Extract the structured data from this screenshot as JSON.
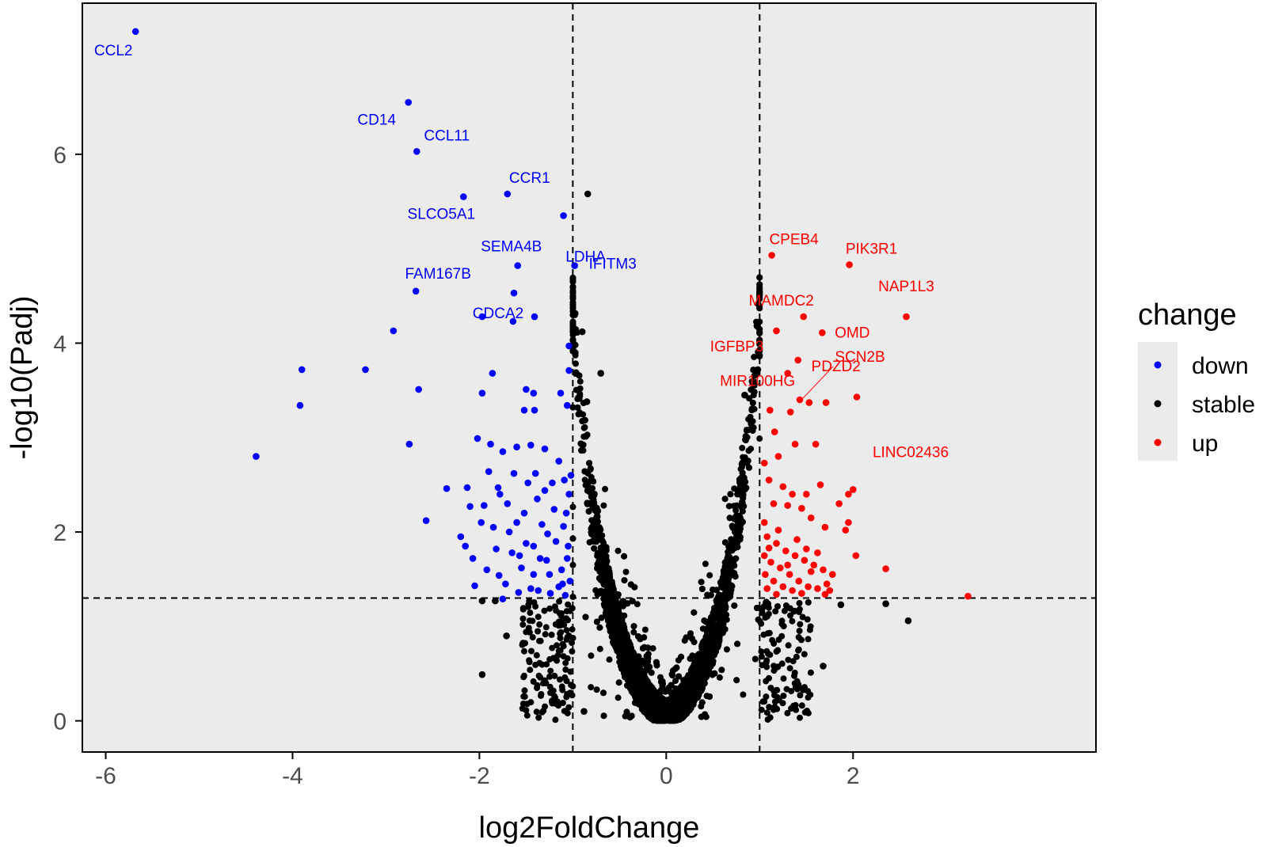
{
  "chart_data": {
    "type": "scatter",
    "xlabel": "log2FoldChange",
    "ylabel": "-log10(Padj)",
    "xlim": [
      -6.25,
      4.6
    ],
    "ylim": [
      -0.33,
      7.6
    ],
    "x_ticks": [
      -6,
      -4,
      -2,
      0,
      2
    ],
    "y_ticks": [
      0,
      2,
      4,
      6
    ],
    "x_tick_labels": [
      "-6",
      "-4",
      "-2",
      "0",
      "2"
    ],
    "y_tick_labels": [
      "0",
      "2",
      "4",
      "6"
    ],
    "grid": false,
    "background": "#ebebeb",
    "thresholds": {
      "fold_change": [
        -1,
        1
      ],
      "padj_line": 1.3
    },
    "legend": {
      "title": "change",
      "position": "right",
      "entries": [
        {
          "name": "down",
          "color": "#0000ff"
        },
        {
          "name": "stable",
          "color": "#000000"
        },
        {
          "name": "up",
          "color": "#ff0000"
        }
      ]
    },
    "stable_cloud": {
      "color": "#000000",
      "count": 5200,
      "description_shape": "v-shaped"
    },
    "series": [
      {
        "name": "down",
        "color": "#0000ff",
        "points": [
          [
            -5.68,
            7.3
          ],
          [
            -2.76,
            6.55
          ],
          [
            -2.67,
            6.03
          ],
          [
            -2.17,
            5.55
          ],
          [
            -1.7,
            5.58
          ],
          [
            -1.1,
            5.35
          ],
          [
            -1.59,
            4.82
          ],
          [
            -0.98,
            4.82
          ],
          [
            -2.68,
            4.55
          ],
          [
            -1.63,
            4.53
          ],
          [
            -1.41,
            4.28
          ],
          [
            -1.97,
            4.28
          ],
          [
            -1.64,
            4.23
          ],
          [
            -2.92,
            4.13
          ],
          [
            -1.04,
            3.97
          ],
          [
            -3.9,
            3.72
          ],
          [
            -3.22,
            3.72
          ],
          [
            -1.86,
            3.68
          ],
          [
            -1.04,
            3.71
          ],
          [
            -2.65,
            3.51
          ],
          [
            -1.5,
            3.51
          ],
          [
            -1.13,
            3.47
          ],
          [
            -1.97,
            3.47
          ],
          [
            -1.42,
            3.47
          ],
          [
            -3.92,
            3.34
          ],
          [
            -1.06,
            3.34
          ],
          [
            -1.52,
            3.29
          ],
          [
            -1.41,
            3.29
          ],
          [
            -2.75,
            2.93
          ],
          [
            -2.02,
            2.99
          ],
          [
            -1.88,
            2.93
          ],
          [
            -4.39,
            2.8
          ],
          [
            -2.35,
            2.46
          ],
          [
            -2.13,
            2.47
          ],
          [
            -2.57,
            2.12
          ],
          [
            -2.1,
            2.27
          ],
          [
            -2.07,
            1.72
          ],
          [
            -2.05,
            1.43
          ],
          [
            -1.79,
            1.54
          ],
          [
            -1.75,
            1.29
          ],
          [
            -1.9,
            2.64
          ],
          [
            -1.8,
            2.47
          ],
          [
            -1.7,
            2.3
          ],
          [
            -1.6,
            2.1
          ],
          [
            -1.5,
            1.88
          ],
          [
            -1.4,
            2.62
          ],
          [
            -1.3,
            2.44
          ],
          [
            -1.2,
            2.24
          ],
          [
            -1.1,
            2.06
          ],
          [
            -1.05,
            1.85
          ],
          [
            -1.35,
            1.72
          ],
          [
            -1.25,
            1.55
          ],
          [
            -1.15,
            1.42
          ],
          [
            -1.08,
            1.33
          ],
          [
            -1.45,
            1.4
          ],
          [
            -1.55,
            1.62
          ],
          [
            -1.65,
            1.78
          ],
          [
            -1.85,
            2.05
          ],
          [
            -1.95,
            2.28
          ],
          [
            -1.75,
            2.85
          ],
          [
            -1.6,
            2.9
          ],
          [
            -1.45,
            2.92
          ],
          [
            -1.3,
            2.88
          ],
          [
            -1.15,
            2.75
          ],
          [
            -1.02,
            2.6
          ],
          [
            -1.22,
            2.52
          ],
          [
            -1.38,
            2.35
          ],
          [
            -1.52,
            2.2
          ],
          [
            -1.68,
            2.0
          ],
          [
            -1.82,
            1.82
          ],
          [
            -1.92,
            1.6
          ],
          [
            -1.72,
            1.45
          ],
          [
            -1.58,
            1.36
          ],
          [
            -1.42,
            1.55
          ],
          [
            -1.28,
            1.7
          ],
          [
            -1.12,
            1.6
          ],
          [
            -1.03,
            1.48
          ],
          [
            -1.18,
            1.9
          ],
          [
            -1.33,
            2.08
          ],
          [
            -1.48,
            2.52
          ],
          [
            -1.63,
            2.62
          ],
          [
            -1.78,
            2.4
          ],
          [
            -2.2,
            1.95
          ],
          [
            -2.15,
            1.85
          ],
          [
            -1.98,
            2.1
          ],
          [
            -1.07,
            2.2
          ],
          [
            -1.04,
            2.4
          ],
          [
            -1.09,
            2.55
          ],
          [
            -1.06,
            1.72
          ],
          [
            -1.11,
            1.45
          ],
          [
            -1.24,
            1.35
          ],
          [
            -1.37,
            1.38
          ],
          [
            -1.27,
            1.98
          ],
          [
            -1.42,
            1.85
          ],
          [
            -1.57,
            1.75
          ]
        ]
      },
      {
        "name": "stable",
        "color": "#000000",
        "points": [
          [
            -0.84,
            5.58
          ],
          [
            -0.98,
            4.3
          ],
          [
            -0.9,
            4.12
          ],
          [
            -0.7,
            3.68
          ],
          [
            -0.85,
            3.38
          ],
          [
            -1.97,
            1.27
          ],
          [
            -1.83,
            1.27
          ],
          [
            -1.71,
            0.9
          ],
          [
            -1.97,
            0.49
          ],
          [
            -0.88,
            0.1
          ],
          [
            0.98,
            3.72
          ],
          [
            0.84,
            3.45
          ],
          [
            1.87,
            1.23
          ],
          [
            2.35,
            1.24
          ],
          [
            2.59,
            1.06
          ],
          [
            1.68,
            0.58
          ]
        ]
      },
      {
        "name": "up",
        "color": "#ff0000",
        "points": [
          [
            1.13,
            4.93
          ],
          [
            1.96,
            4.83
          ],
          [
            2.57,
            4.28
          ],
          [
            1.47,
            4.28
          ],
          [
            1.67,
            4.11
          ],
          [
            1.18,
            4.13
          ],
          [
            1.41,
            3.82
          ],
          [
            1.3,
            3.68
          ],
          [
            1.43,
            3.4
          ],
          [
            2.04,
            3.43
          ],
          [
            1.71,
            3.37
          ],
          [
            1.53,
            3.37
          ],
          [
            1.11,
            3.29
          ],
          [
            1.33,
            3.27
          ],
          [
            2.35,
            1.61
          ],
          [
            3.23,
            1.32
          ],
          [
            1.16,
            3.06
          ],
          [
            1.38,
            2.93
          ],
          [
            1.6,
            2.93
          ],
          [
            1.2,
            2.8
          ],
          [
            1.05,
            2.73
          ],
          [
            1.1,
            2.55
          ],
          [
            1.25,
            2.48
          ],
          [
            1.35,
            2.4
          ],
          [
            1.5,
            2.4
          ],
          [
            1.65,
            2.5
          ],
          [
            1.95,
            2.4
          ],
          [
            2.0,
            2.45
          ],
          [
            1.85,
            2.3
          ],
          [
            1.95,
            2.1
          ],
          [
            1.92,
            2.02
          ],
          [
            2.03,
            1.75
          ],
          [
            1.15,
            2.3
          ],
          [
            1.3,
            2.28
          ],
          [
            1.45,
            2.25
          ],
          [
            1.55,
            2.15
          ],
          [
            1.7,
            2.05
          ],
          [
            1.05,
            2.1
          ],
          [
            1.08,
            1.95
          ],
          [
            1.18,
            1.88
          ],
          [
            1.28,
            1.8
          ],
          [
            1.38,
            1.75
          ],
          [
            1.48,
            1.7
          ],
          [
            1.58,
            1.65
          ],
          [
            1.68,
            1.6
          ],
          [
            1.78,
            1.55
          ],
          [
            1.05,
            1.75
          ],
          [
            1.12,
            1.68
          ],
          [
            1.22,
            1.62
          ],
          [
            1.32,
            1.55
          ],
          [
            1.42,
            1.48
          ],
          [
            1.52,
            1.42
          ],
          [
            1.62,
            1.4
          ],
          [
            1.72,
            1.45
          ],
          [
            1.06,
            1.55
          ],
          [
            1.15,
            1.48
          ],
          [
            1.25,
            1.42
          ],
          [
            1.35,
            1.38
          ],
          [
            1.45,
            1.35
          ],
          [
            1.08,
            1.4
          ],
          [
            1.18,
            1.34
          ],
          [
            1.7,
            1.34
          ],
          [
            1.75,
            1.38
          ],
          [
            1.55,
            1.58
          ],
          [
            1.4,
            1.92
          ],
          [
            1.2,
            2.02
          ],
          [
            1.1,
            1.83
          ],
          [
            1.3,
            1.65
          ],
          [
            1.5,
            1.82
          ],
          [
            1.62,
            1.78
          ]
        ]
      }
    ],
    "annotations": [
      {
        "text": "CCL2",
        "x": -5.68,
        "y": 7.3,
        "color": "#0000ff"
      },
      {
        "text": "CD14",
        "x": -2.76,
        "y": 6.55,
        "color": "#0000ff"
      },
      {
        "text": "CCL11",
        "x": -2.67,
        "y": 6.03,
        "color": "#0000ff"
      },
      {
        "text": "CCR1",
        "x": -1.7,
        "y": 5.58,
        "color": "#0000ff"
      },
      {
        "text": "SLCO5A1",
        "x": -2.17,
        "y": 5.55,
        "color": "#0000ff"
      },
      {
        "text": "LDHA",
        "x": -1.1,
        "y": 5.35,
        "color": "#0000ff"
      },
      {
        "text": "SEMA4B",
        "x": -1.59,
        "y": 4.82,
        "color": "#0000ff"
      },
      {
        "text": "IFITM3",
        "x": -0.98,
        "y": 4.82,
        "color": "#0000ff"
      },
      {
        "text": "FAM167B",
        "x": -2.68,
        "y": 4.55,
        "color": "#0000ff"
      },
      {
        "text": "CDCA2",
        "x": -1.63,
        "y": 4.53,
        "color": "#0000ff"
      },
      {
        "text": "CPEB4",
        "x": 1.13,
        "y": 4.93,
        "color": "#ff0000"
      },
      {
        "text": "PIK3R1",
        "x": 1.96,
        "y": 4.83,
        "color": "#ff0000"
      },
      {
        "text": "NAP1L3",
        "x": 2.57,
        "y": 4.28,
        "color": "#ff0000"
      },
      {
        "text": "MAMDC2",
        "x": 1.47,
        "y": 4.28,
        "color": "#ff0000"
      },
      {
        "text": "OMD",
        "x": 1.67,
        "y": 4.11,
        "color": "#ff0000"
      },
      {
        "text": "IGFBP3",
        "x": 1.18,
        "y": 4.13,
        "color": "#ff0000"
      },
      {
        "text": "PDZD2",
        "x": 1.41,
        "y": 3.82,
        "color": "#ff0000"
      },
      {
        "text": "SCN2B",
        "x": 1.43,
        "y": 3.4,
        "color": "#ff0000"
      },
      {
        "text": "MIR100HG",
        "x": 1.3,
        "y": 3.68,
        "color": "#ff0000"
      },
      {
        "text": "LINC02436",
        "x": 2.04,
        "y": 3.43,
        "color": "#ff0000"
      }
    ]
  }
}
